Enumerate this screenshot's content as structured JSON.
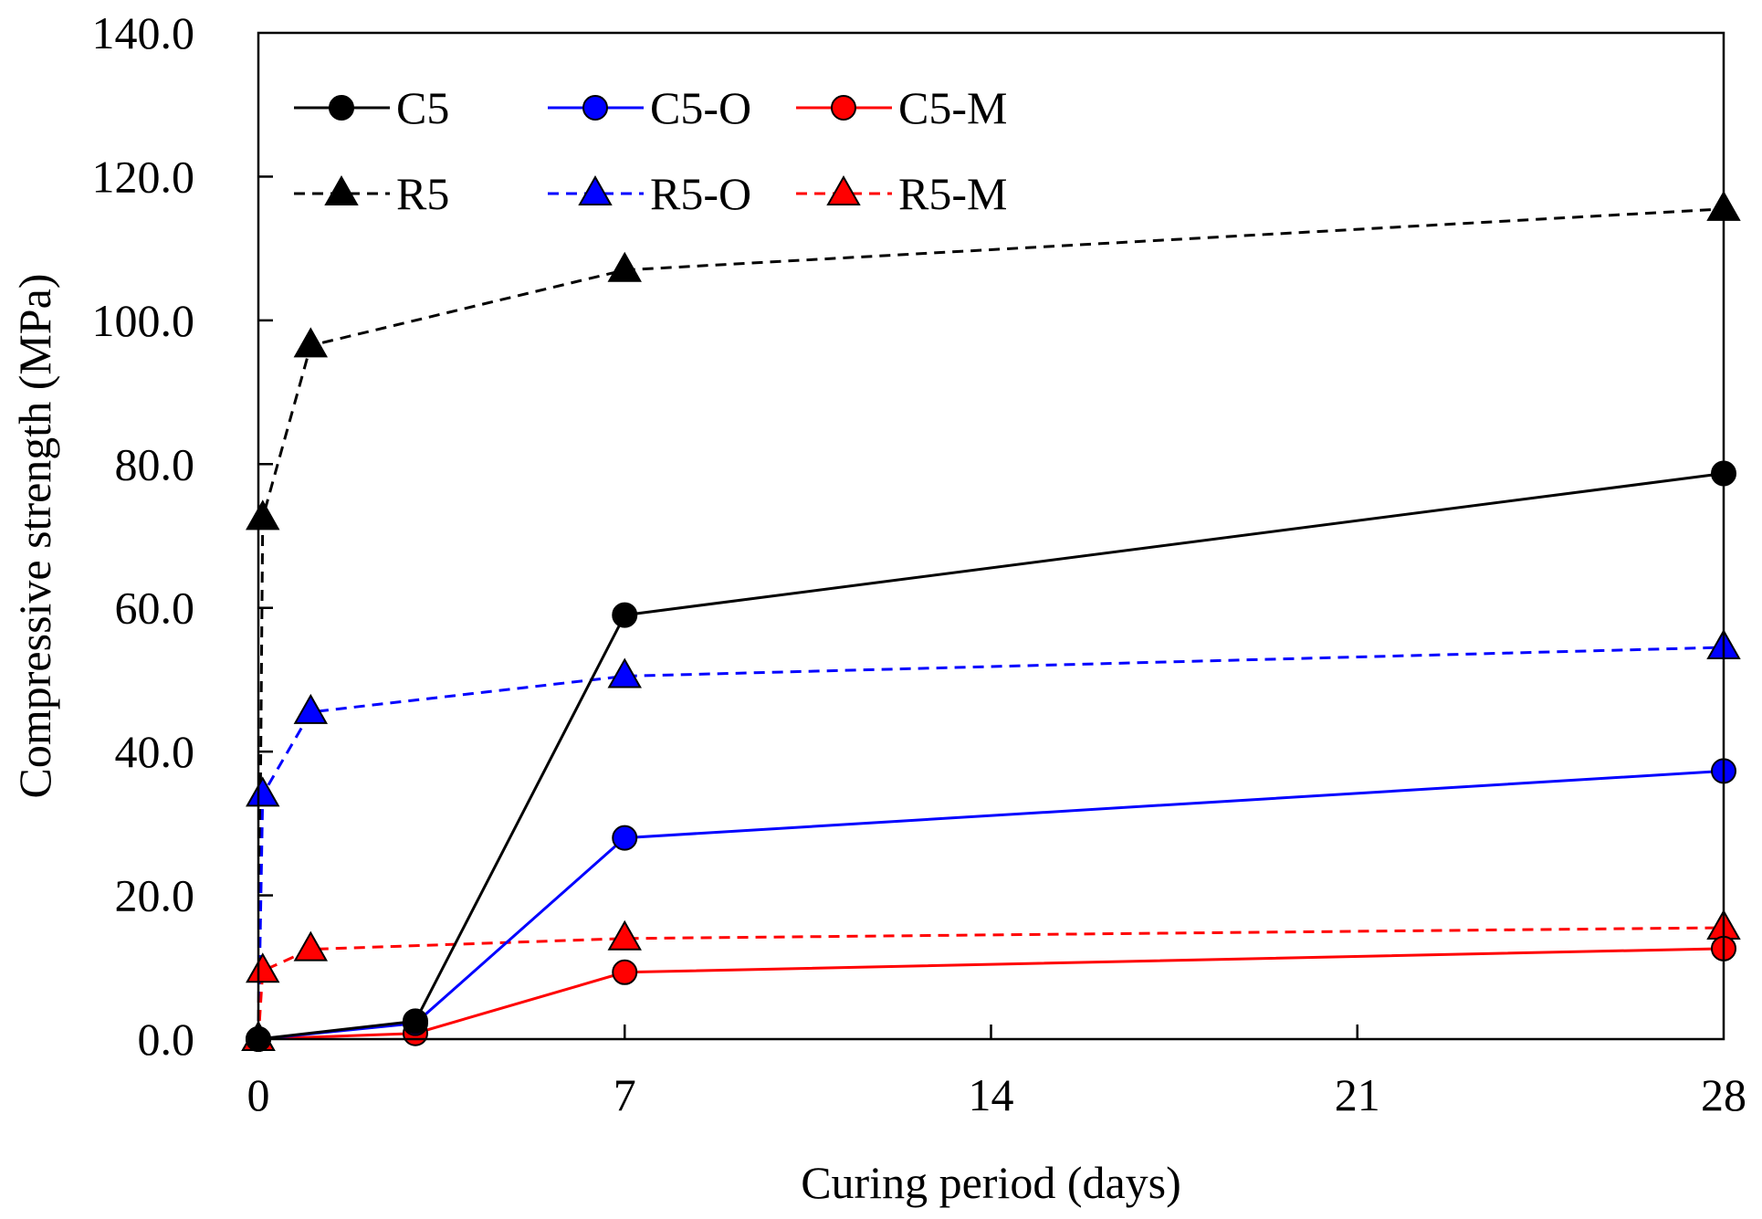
{
  "chart_data": {
    "type": "line",
    "xlabel": "Curing period (days)",
    "ylabel": "Compressive strength  (MPa)",
    "xlim": [
      0,
      28
    ],
    "ylim": [
      0,
      140
    ],
    "xticks": [
      0,
      7,
      14,
      21,
      28
    ],
    "yticks": [
      0,
      20,
      40,
      60,
      80,
      100,
      120,
      140
    ],
    "ytick_labels": [
      "0.0",
      "20.0",
      "40.0",
      "60.0",
      "80.0",
      "100.0",
      "120.0",
      "140.0"
    ],
    "grid": false,
    "legend_position": "top-left",
    "series": [
      {
        "name": "C5",
        "color": "#000000",
        "dash": "solid",
        "marker": "circle",
        "x": [
          0,
          3,
          7,
          28
        ],
        "y": [
          0.0,
          2.5,
          59.0,
          78.7
        ]
      },
      {
        "name": "C5-O",
        "color": "#0000ff",
        "dash": "solid",
        "marker": "circle",
        "x": [
          0,
          3,
          7,
          28
        ],
        "y": [
          0.0,
          2.2,
          28.0,
          37.3
        ]
      },
      {
        "name": "C5-M",
        "color": "#ff0000",
        "dash": "solid",
        "marker": "circle",
        "x": [
          0,
          3,
          7,
          28
        ],
        "y": [
          0.0,
          0.8,
          9.3,
          12.6
        ]
      },
      {
        "name": "R5",
        "color": "#000000",
        "dash": "dashed",
        "marker": "triangle",
        "x": [
          0,
          0.083,
          1,
          7,
          28
        ],
        "y": [
          0.0,
          72.5,
          96.5,
          107.0,
          115.5
        ]
      },
      {
        "name": "R5-O",
        "color": "#0000ff",
        "dash": "dashed",
        "marker": "triangle",
        "x": [
          0,
          0.083,
          1,
          7,
          28
        ],
        "y": [
          0.0,
          34.0,
          45.5,
          50.5,
          54.5
        ]
      },
      {
        "name": "R5-M",
        "color": "#ff0000",
        "dash": "dashed",
        "marker": "triangle",
        "x": [
          0,
          0.083,
          1,
          7,
          28
        ],
        "y": [
          0.0,
          9.5,
          12.5,
          14.0,
          15.5
        ]
      }
    ],
    "legend_order": [
      "C5",
      "C5-O",
      "C5-M",
      "R5",
      "R5-O",
      "R5-M"
    ]
  }
}
